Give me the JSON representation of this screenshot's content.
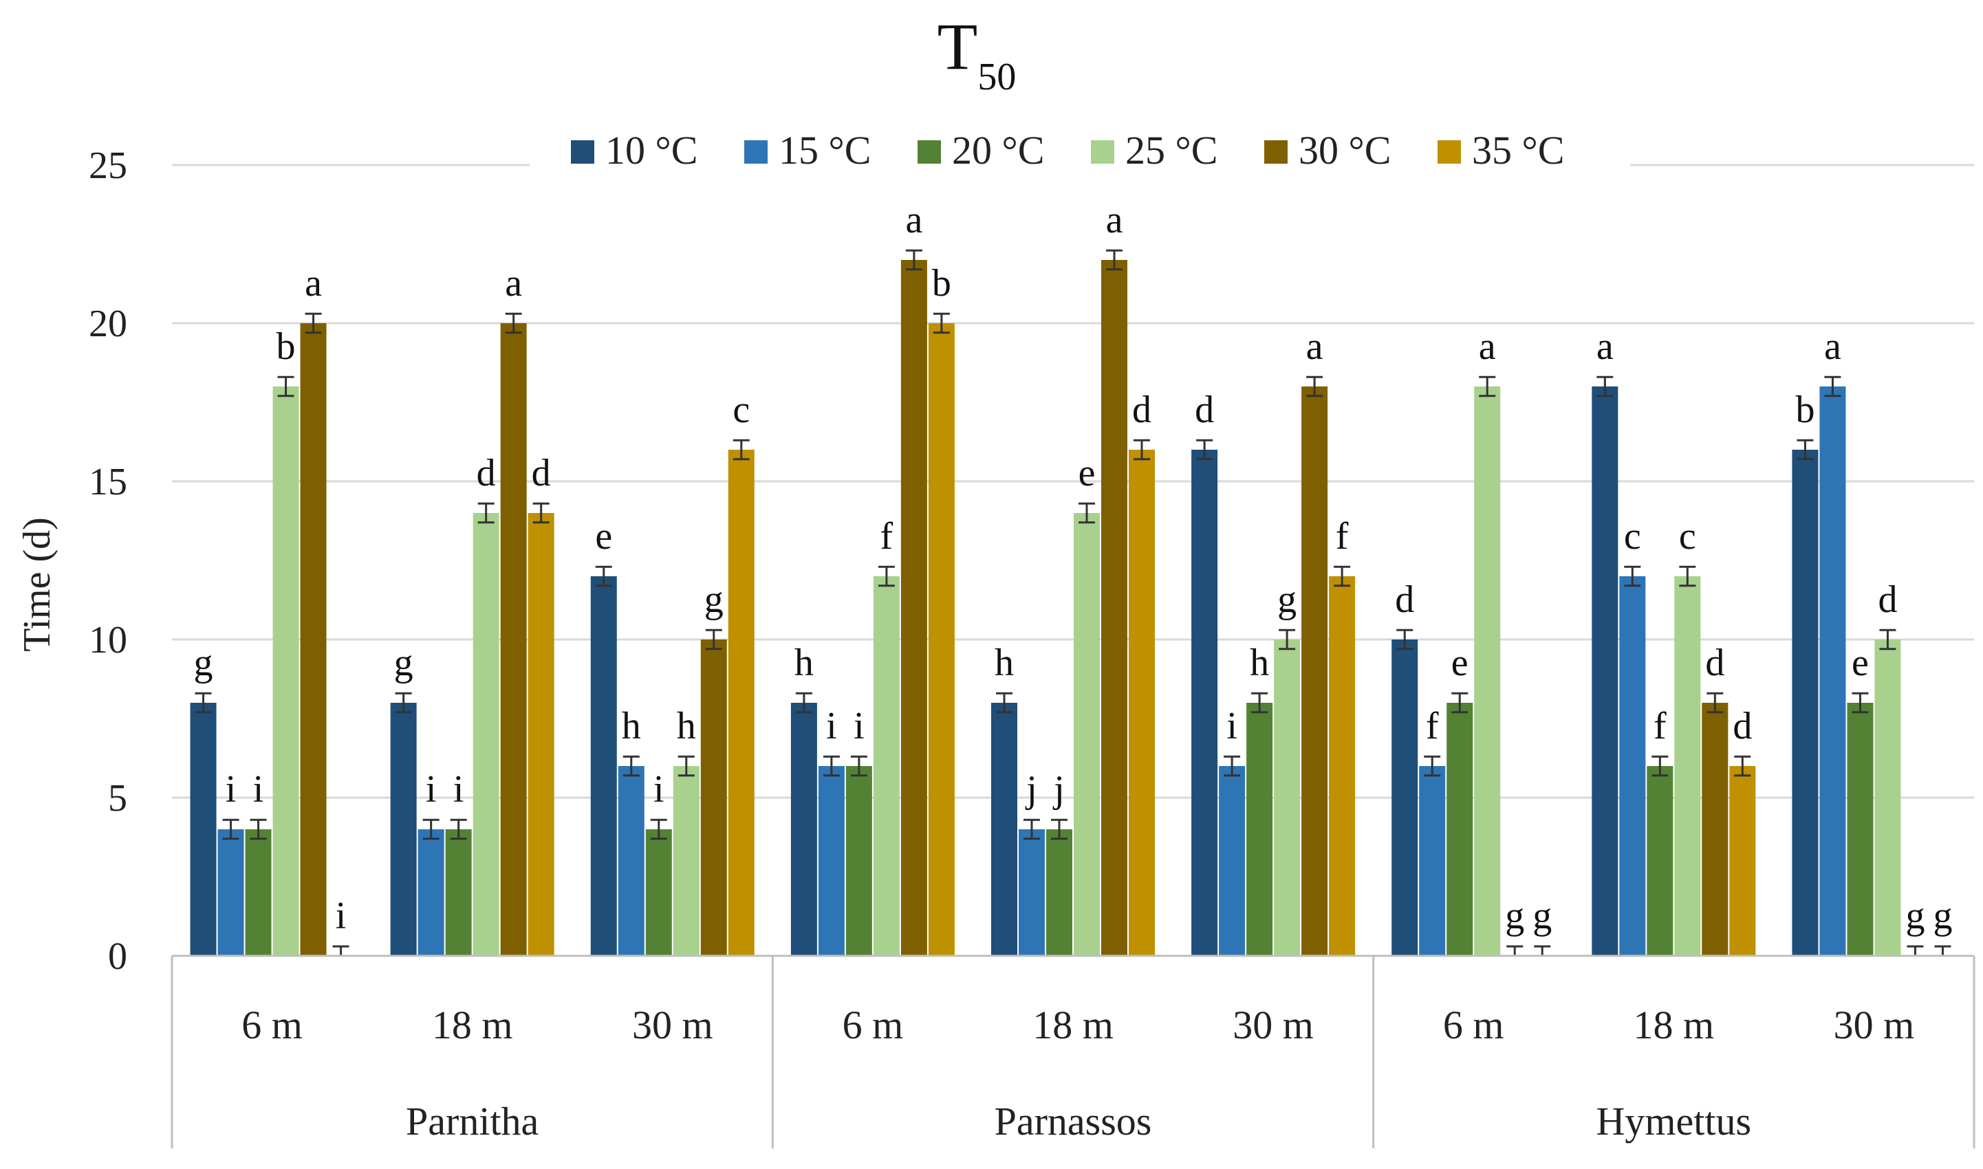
{
  "chart_data": {
    "type": "bar",
    "title": "T",
    "title_subscript": "50",
    "ylabel": "Time (d)",
    "xlabel": "",
    "ylim": [
      0,
      25
    ],
    "yticks": [
      0,
      5,
      10,
      15,
      20,
      25
    ],
    "grid": true,
    "legend_position": "top-center",
    "groups": [
      {
        "name": "Parnitha",
        "categories": [
          "6 m",
          "18 m",
          "30 m"
        ]
      },
      {
        "name": "Parnassos",
        "categories": [
          "6 m",
          "18 m",
          "30 m"
        ]
      },
      {
        "name": "Hymettus",
        "categories": [
          "6 m",
          "18 m",
          "30 m"
        ]
      }
    ],
    "categories": [
      "6 m",
      "18 m",
      "30 m",
      "6 m",
      "18 m",
      "30 m",
      "6 m",
      "18 m",
      "30 m"
    ],
    "series": [
      {
        "name": "10 °C",
        "color": "#1F4E79",
        "values": [
          8,
          8,
          12,
          8,
          8,
          16,
          10,
          18,
          16
        ],
        "letters": [
          "g",
          "g",
          "e",
          "h",
          "h",
          "d",
          "d",
          "a",
          "b"
        ]
      },
      {
        "name": "15 °C",
        "color": "#2E75B6",
        "values": [
          4,
          4,
          6,
          6,
          4,
          6,
          6,
          12,
          18
        ],
        "letters": [
          "i",
          "i",
          "h",
          "i",
          "j",
          "i",
          "f",
          "c",
          "a"
        ]
      },
      {
        "name": "20 °C",
        "color": "#548235",
        "values": [
          4,
          4,
          4,
          6,
          4,
          8,
          8,
          6,
          8
        ],
        "letters": [
          "i",
          "i",
          "i",
          "i",
          "j",
          "h",
          "e",
          "f",
          "e"
        ]
      },
      {
        "name": "25 °C",
        "color": "#A9D18E",
        "values": [
          18,
          14,
          6,
          12,
          14,
          10,
          18,
          12,
          10
        ],
        "letters": [
          "b",
          "d",
          "h",
          "f",
          "e",
          "g",
          "a",
          "c",
          "d"
        ]
      },
      {
        "name": "30 °C",
        "color": "#7F6000",
        "values": [
          20,
          20,
          10,
          22,
          22,
          18,
          0,
          8,
          0
        ],
        "letters": [
          "a",
          "a",
          "g",
          "a",
          "a",
          "a",
          "g",
          "d",
          "g"
        ]
      },
      {
        "name": "35 °C",
        "color": "#BF9000",
        "values": [
          0,
          14,
          16,
          20,
          16,
          12,
          0,
          6,
          0
        ],
        "letters": [
          "i",
          "d",
          "c",
          "b",
          "d",
          "f",
          "g",
          "d",
          "g"
        ]
      }
    ],
    "error_bar": 0.3
  }
}
